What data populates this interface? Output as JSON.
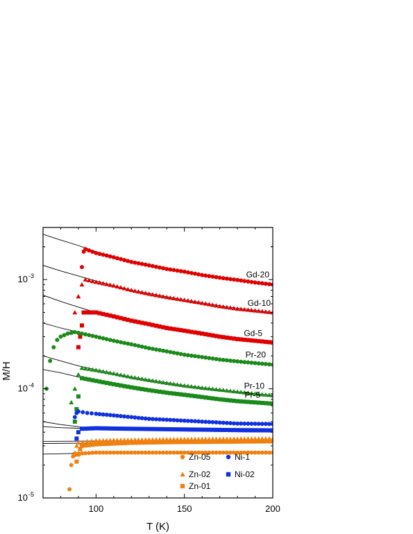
{
  "chart_data": {
    "type": "scatter",
    "title": "",
    "xlabel": "T (K)",
    "ylabel": "M/H",
    "xlim": [
      70,
      200
    ],
    "ylim": [
      1e-05,
      0.003
    ],
    "y_scale": "log",
    "x_ticks": [
      "100",
      "150",
      "200"
    ],
    "x_tick_values": [
      100,
      150,
      200
    ],
    "y_ticks": [
      {
        "value": 1e-05,
        "base": "10",
        "exp": "-5"
      },
      {
        "value": 0.0001,
        "base": "10",
        "exp": "-4"
      },
      {
        "value": 0.001,
        "base": "10",
        "exp": "-3"
      }
    ],
    "colors": {
      "Gd": "#e00000",
      "Pr": "#1a8a1a",
      "Ni": "#1030e0",
      "Zn": "#f08010",
      "fit": "#000000"
    },
    "series": [
      {
        "name": "Gd-20",
        "color": "#e00000",
        "marker": "circle",
        "points": [
          [
            92,
            0.0013
          ],
          [
            93,
            0.0018
          ],
          [
            94,
            0.0019
          ],
          [
            100,
            0.00175
          ],
          [
            110,
            0.0016
          ],
          [
            120,
            0.00145
          ],
          [
            130,
            0.00135
          ],
          [
            140,
            0.00125
          ],
          [
            150,
            0.00118
          ],
          [
            160,
            0.0011
          ],
          [
            170,
            0.00104
          ],
          [
            180,
            0.00099
          ],
          [
            190,
            0.00094
          ],
          [
            200,
            0.0009
          ]
        ],
        "fit": [
          [
            70,
            0.0026
          ],
          [
            80,
            0.0023
          ],
          [
            90,
            0.00205
          ],
          [
            100,
            0.0018
          ],
          [
            120,
            0.00145
          ],
          [
            150,
            0.00118
          ],
          [
            175,
            0.00102
          ],
          [
            200,
            0.0009
          ]
        ]
      },
      {
        "name": "Gd-10",
        "color": "#e00000",
        "marker": "triangle",
        "points": [
          [
            88,
            0.0005
          ],
          [
            90,
            0.0007
          ],
          [
            92,
            0.0009
          ],
          [
            94,
            0.001
          ],
          [
            100,
            0.00095
          ],
          [
            110,
            0.00088
          ],
          [
            120,
            0.0008
          ],
          [
            130,
            0.00074
          ],
          [
            140,
            0.00069
          ],
          [
            150,
            0.00065
          ],
          [
            160,
            0.00061
          ],
          [
            170,
            0.00057
          ],
          [
            180,
            0.00054
          ],
          [
            190,
            0.00052
          ],
          [
            200,
            0.0005
          ]
        ],
        "fit": [
          [
            70,
            0.00135
          ],
          [
            80,
            0.0012
          ],
          [
            90,
            0.00108
          ],
          [
            100,
            0.00097
          ],
          [
            120,
            0.0008
          ],
          [
            150,
            0.00065
          ],
          [
            175,
            0.00056
          ],
          [
            200,
            0.0005
          ]
        ]
      },
      {
        "name": "Gd-5",
        "color": "#e00000",
        "marker": "square",
        "points": [
          [
            90,
            0.00024
          ],
          [
            91,
            0.0003
          ],
          [
            92,
            0.00038
          ],
          [
            93,
            0.0005
          ],
          [
            100,
            0.0005
          ],
          [
            110,
            0.00046
          ],
          [
            120,
            0.00042
          ],
          [
            130,
            0.00039
          ],
          [
            140,
            0.00036
          ],
          [
            150,
            0.00034
          ],
          [
            160,
            0.00032
          ],
          [
            170,
            0.0003
          ],
          [
            180,
            0.000285
          ],
          [
            190,
            0.000275
          ],
          [
            200,
            0.000265
          ]
        ],
        "fit": [
          [
            70,
            0.00072
          ],
          [
            80,
            0.00063
          ],
          [
            90,
            0.00056
          ],
          [
            100,
            0.0005
          ],
          [
            120,
            0.00042
          ],
          [
            150,
            0.00034
          ],
          [
            175,
            0.0003
          ],
          [
            200,
            0.000265
          ]
        ]
      },
      {
        "name": "Pr-20",
        "color": "#1a8a1a",
        "marker": "circle",
        "points": [
          [
            72,
            0.0001
          ],
          [
            74,
            0.00018
          ],
          [
            76,
            0.00024
          ],
          [
            78,
            0.00028
          ],
          [
            80,
            0.0003
          ],
          [
            84,
            0.00032
          ],
          [
            88,
            0.00033
          ],
          [
            92,
            0.00032
          ],
          [
            100,
            0.0003
          ],
          [
            110,
            0.000275
          ],
          [
            120,
            0.000255
          ],
          [
            130,
            0.000235
          ],
          [
            140,
            0.00022
          ],
          [
            150,
            0.000205
          ],
          [
            160,
            0.000195
          ],
          [
            170,
            0.000185
          ],
          [
            180,
            0.000178
          ],
          [
            190,
            0.000172
          ],
          [
            200,
            0.000166
          ]
        ],
        "fit": [
          [
            70,
            0.0004
          ],
          [
            80,
            0.00036
          ],
          [
            90,
            0.00033
          ],
          [
            100,
            0.0003
          ],
          [
            120,
            0.000255
          ],
          [
            150,
            0.000205
          ],
          [
            175,
            0.00018
          ],
          [
            200,
            0.000166
          ]
        ]
      },
      {
        "name": "Pr-10",
        "color": "#1a8a1a",
        "marker": "triangle",
        "points": [
          [
            86,
            7.5e-05
          ],
          [
            88,
            0.0001
          ],
          [
            90,
            0.000135
          ],
          [
            92,
            0.000155
          ],
          [
            100,
            0.000148
          ],
          [
            110,
            0.000138
          ],
          [
            120,
            0.000128
          ],
          [
            130,
            0.00012
          ],
          [
            140,
            0.000113
          ],
          [
            150,
            0.000107
          ],
          [
            160,
            0.000102
          ],
          [
            170,
            9.8e-05
          ],
          [
            180,
            9.4e-05
          ],
          [
            190,
            9e-05
          ],
          [
            200,
            8.7e-05
          ]
        ],
        "fit": [
          [
            70,
            0.0002
          ],
          [
            80,
            0.00018
          ],
          [
            90,
            0.000162
          ],
          [
            100,
            0.000149
          ],
          [
            120,
            0.000128
          ],
          [
            150,
            0.000107
          ],
          [
            175,
            9.6e-05
          ],
          [
            200,
            8.7e-05
          ]
        ]
      },
      {
        "name": "Pr-5",
        "color": "#1a8a1a",
        "marker": "square",
        "points": [
          [
            88,
            5e-05
          ],
          [
            89,
            6.5e-05
          ],
          [
            90,
            8.5e-05
          ],
          [
            92,
            0.000125
          ],
          [
            100,
            0.000118
          ],
          [
            110,
            0.00011
          ],
          [
            120,
            0.000103
          ],
          [
            130,
            9.7e-05
          ],
          [
            140,
            9.2e-05
          ],
          [
            150,
            8.8e-05
          ],
          [
            160,
            8.4e-05
          ],
          [
            170,
            8e-05
          ],
          [
            180,
            7.7e-05
          ],
          [
            190,
            7.5e-05
          ],
          [
            200,
            7.3e-05
          ]
        ],
        "fit": [
          [
            70,
            0.00015
          ],
          [
            80,
            0.00014
          ],
          [
            90,
            0.000128
          ],
          [
            100,
            0.000119
          ],
          [
            120,
            0.000103
          ],
          [
            150,
            8.8e-05
          ],
          [
            175,
            7.9e-05
          ],
          [
            200,
            7.3e-05
          ]
        ]
      },
      {
        "name": "Ni-1",
        "color": "#1030e0",
        "marker": "circle",
        "points": [
          [
            88,
            5.5e-05
          ],
          [
            89,
            6e-05
          ],
          [
            90,
            6.2e-05
          ],
          [
            95,
            6e-05
          ],
          [
            100,
            5.9e-05
          ],
          [
            110,
            5.7e-05
          ],
          [
            120,
            5.5e-05
          ],
          [
            130,
            5.3e-05
          ],
          [
            140,
            5.2e-05
          ],
          [
            150,
            5.1e-05
          ],
          [
            160,
            5e-05
          ],
          [
            170,
            4.9e-05
          ],
          [
            180,
            4.8e-05
          ],
          [
            190,
            4.78e-05
          ],
          [
            200,
            4.75e-05
          ]
        ],
        "fit": [
          [
            70,
            5e-05
          ],
          [
            80,
            4.7e-05
          ],
          [
            90,
            4.5e-05
          ],
          [
            100,
            4.35e-05
          ],
          [
            120,
            4.2e-05
          ],
          [
            150,
            4.1e-05
          ],
          [
            175,
            4.05e-05
          ],
          [
            200,
            4e-05
          ]
        ]
      },
      {
        "name": "Ni-02",
        "color": "#1030e0",
        "marker": "square",
        "points": [
          [
            88,
            2.5e-05
          ],
          [
            89,
            3.5e-05
          ],
          [
            90,
            4e-05
          ],
          [
            92,
            4.3e-05
          ],
          [
            100,
            4.35e-05
          ],
          [
            110,
            4.32e-05
          ],
          [
            120,
            4.3e-05
          ],
          [
            130,
            4.28e-05
          ],
          [
            140,
            4.26e-05
          ],
          [
            150,
            4.24e-05
          ],
          [
            160,
            4.22e-05
          ],
          [
            170,
            4.2e-05
          ],
          [
            180,
            4.18e-05
          ],
          [
            190,
            4.17e-05
          ],
          [
            200,
            4.16e-05
          ]
        ],
        "fit": [
          [
            70,
            4.5e-05
          ],
          [
            80,
            4.4e-05
          ],
          [
            90,
            4.35e-05
          ],
          [
            100,
            4.32e-05
          ],
          [
            120,
            4.3e-05
          ],
          [
            150,
            4.24e-05
          ],
          [
            175,
            4.19e-05
          ],
          [
            200,
            4.16e-05
          ]
        ]
      },
      {
        "name": "Zn-05",
        "color": "#f08010",
        "marker": "circle",
        "points": [
          [
            85,
            1.2e-05
          ],
          [
            86,
            2e-05
          ],
          [
            87,
            2.4e-05
          ],
          [
            88,
            2.5e-05
          ],
          [
            90,
            2.55e-05
          ],
          [
            100,
            2.6e-05
          ],
          [
            110,
            2.6e-05
          ],
          [
            120,
            2.6e-05
          ],
          [
            130,
            2.6e-05
          ],
          [
            140,
            2.6e-05
          ],
          [
            150,
            2.6e-05
          ],
          [
            160,
            2.6e-05
          ],
          [
            170,
            2.6e-05
          ],
          [
            180,
            2.6e-05
          ],
          [
            190,
            2.6e-05
          ],
          [
            200,
            2.6e-05
          ]
        ],
        "fit": [
          [
            70,
            2.52e-05
          ],
          [
            100,
            2.58e-05
          ],
          [
            150,
            2.6e-05
          ],
          [
            200,
            2.62e-05
          ]
        ]
      },
      {
        "name": "Zn-02",
        "color": "#f08010",
        "marker": "triangle",
        "points": [
          [
            88,
            2.6e-05
          ],
          [
            89,
            3e-05
          ],
          [
            90,
            3.2e-05
          ],
          [
            95,
            3.3e-05
          ],
          [
            100,
            3.35e-05
          ],
          [
            110,
            3.38e-05
          ],
          [
            120,
            3.4e-05
          ],
          [
            130,
            3.42e-05
          ],
          [
            140,
            3.44e-05
          ],
          [
            150,
            3.45e-05
          ],
          [
            160,
            3.46e-05
          ],
          [
            170,
            3.47e-05
          ],
          [
            180,
            3.48e-05
          ],
          [
            190,
            3.49e-05
          ],
          [
            200,
            3.5e-05
          ]
        ],
        "fit": [
          [
            70,
            3.3e-05
          ],
          [
            100,
            3.32e-05
          ],
          [
            150,
            3.36e-05
          ],
          [
            200,
            3.4e-05
          ]
        ]
      },
      {
        "name": "Zn-01",
        "color": "#f08010",
        "marker": "square",
        "points": [
          [
            89,
            2.15e-05
          ],
          [
            90,
            2.5e-05
          ],
          [
            91,
            2.8e-05
          ],
          [
            92,
            3e-05
          ],
          [
            100,
            3.1e-05
          ],
          [
            110,
            3.15e-05
          ],
          [
            120,
            3.2e-05
          ],
          [
            130,
            3.22e-05
          ],
          [
            140,
            3.24e-05
          ],
          [
            150,
            3.25e-05
          ],
          [
            160,
            3.26e-05
          ],
          [
            170,
            3.27e-05
          ],
          [
            180,
            3.28e-05
          ],
          [
            190,
            3.29e-05
          ],
          [
            200,
            3.3e-05
          ]
        ],
        "fit": [
          [
            70,
            3.15e-05
          ],
          [
            100,
            3.18e-05
          ],
          [
            150,
            3.22e-05
          ],
          [
            200,
            3.25e-05
          ]
        ]
      }
    ],
    "series_labels": [
      {
        "series": "Gd-20",
        "text": "Gd-20"
      },
      {
        "series": "Gd-10",
        "text": "Gd-10"
      },
      {
        "series": "Gd-5",
        "text": "Gd-5"
      },
      {
        "series": "Pr-20",
        "text": "Pr-20"
      },
      {
        "series": "Pr-10",
        "text": "Pr-10"
      },
      {
        "series": "Pr-5",
        "text": "Pr-5"
      }
    ],
    "legend": {
      "placement": "bottom-right",
      "entries": [
        {
          "label": "Zn-05",
          "color": "#f08010",
          "marker": "circle"
        },
        {
          "label": "Zn-02",
          "color": "#f08010",
          "marker": "triangle"
        },
        {
          "label": "Zn-01",
          "color": "#f08010",
          "marker": "square"
        },
        {
          "label": "Ni-1",
          "color": "#1030e0",
          "marker": "circle"
        },
        {
          "label": "Ni-02",
          "color": "#1030e0",
          "marker": "square"
        }
      ]
    },
    "grid": false
  }
}
